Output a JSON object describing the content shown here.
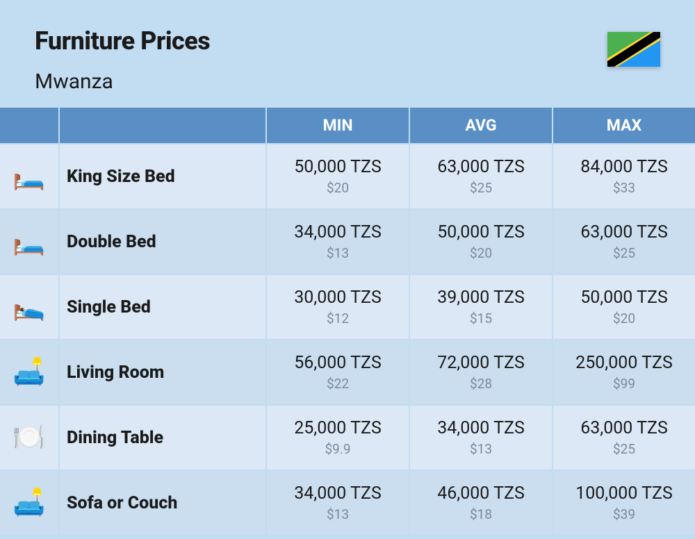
{
  "header": {
    "title": "Furniture Prices",
    "subtitle": "Mwanza"
  },
  "flag": {
    "name": "tanzania-flag",
    "colors": {
      "green": "#4caf50",
      "yellow": "#fdd835",
      "black": "#000000",
      "blue": "#2196f3"
    }
  },
  "columns": [
    "MIN",
    "AVG",
    "MAX"
  ],
  "rows": [
    {
      "icon": "🛏️",
      "icon_name": "king-bed-icon",
      "label": "King Size Bed",
      "min_tzs": "50,000 TZS",
      "min_usd": "$20",
      "avg_tzs": "63,000 TZS",
      "avg_usd": "$25",
      "max_tzs": "84,000 TZS",
      "max_usd": "$33"
    },
    {
      "icon": "🛏️",
      "icon_name": "double-bed-icon",
      "label": "Double Bed",
      "min_tzs": "34,000 TZS",
      "min_usd": "$13",
      "avg_tzs": "50,000 TZS",
      "avg_usd": "$20",
      "max_tzs": "63,000 TZS",
      "max_usd": "$25"
    },
    {
      "icon": "🛌",
      "icon_name": "single-bed-icon",
      "label": "Single Bed",
      "min_tzs": "30,000 TZS",
      "min_usd": "$12",
      "avg_tzs": "39,000 TZS",
      "avg_usd": "$15",
      "max_tzs": "50,000 TZS",
      "max_usd": "$20"
    },
    {
      "icon": "🛋️",
      "icon_name": "living-room-icon",
      "label": "Living Room",
      "min_tzs": "56,000 TZS",
      "min_usd": "$22",
      "avg_tzs": "72,000 TZS",
      "avg_usd": "$28",
      "max_tzs": "250,000 TZS",
      "max_usd": "$99"
    },
    {
      "icon": "🍽️",
      "icon_name": "dining-table-icon",
      "label": "Dining Table",
      "min_tzs": "25,000 TZS",
      "min_usd": "$9.9",
      "avg_tzs": "34,000 TZS",
      "avg_usd": "$13",
      "max_tzs": "63,000 TZS",
      "max_usd": "$25"
    },
    {
      "icon": "🛋️",
      "icon_name": "sofa-icon",
      "label": "Sofa or Couch",
      "min_tzs": "34,000 TZS",
      "min_usd": "$13",
      "avg_tzs": "46,000 TZS",
      "avg_usd": "$18",
      "max_tzs": "100,000 TZS",
      "max_usd": "$39"
    }
  ],
  "styling": {
    "background_color": "#c2dcf2",
    "header_bg": "#5a8fc5",
    "header_text_color": "#ffffff",
    "row_odd_bg": "#dce8f5",
    "row_even_bg": "#cadef0",
    "title_fontsize": 36,
    "subtitle_fontsize": 30,
    "column_header_fontsize": 23,
    "label_fontsize": 25,
    "price_main_fontsize": 25,
    "price_sub_fontsize": 19,
    "price_sub_color": "#7a8a9a",
    "grid_columns": "84px 296px 1fr 1fr 1fr",
    "gap": 2
  }
}
